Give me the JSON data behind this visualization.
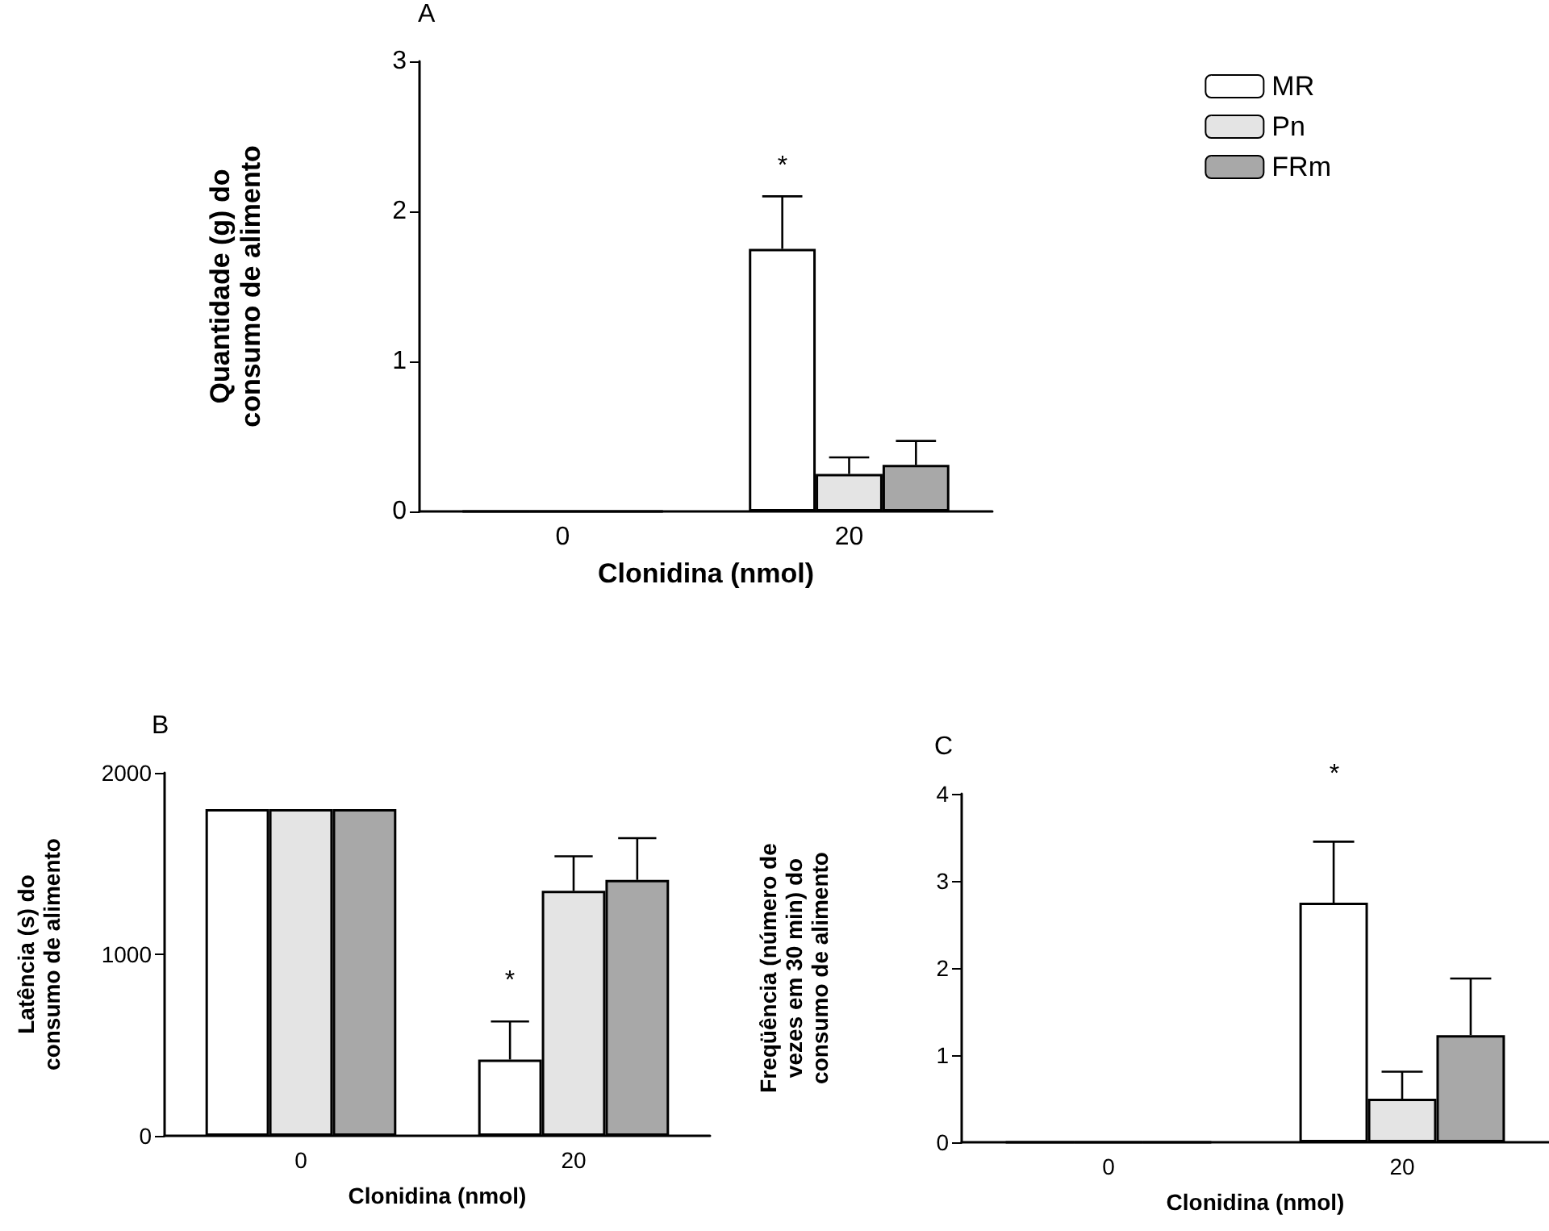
{
  "chart_data": [
    {
      "type": "bar",
      "title": "A",
      "xlabel": "Clonidina (nmol)",
      "ylabel": "Quantidade (g) do\nconsumo de alimento",
      "categories": [
        "0",
        "20"
      ],
      "series": [
        {
          "name": "MR",
          "color": "#ffffff",
          "values": [
            0,
            1.75
          ],
          "errors": [
            null,
            0.35
          ]
        },
        {
          "name": "Pn",
          "color": "#e4e4e4",
          "values": [
            0,
            0.25
          ],
          "errors": [
            null,
            0.11
          ]
        },
        {
          "name": "FRm",
          "color": "#a8a8a8",
          "values": [
            0,
            0.31
          ],
          "errors": [
            null,
            0.16
          ]
        }
      ],
      "ylim": [
        0,
        3
      ],
      "yticks": [
        0,
        1,
        2,
        3
      ],
      "grid": false,
      "legend": "top right",
      "annotations": [
        "*"
      ]
    },
    {
      "type": "bar",
      "title": "B",
      "xlabel": "Clonidina (nmol)",
      "ylabel": "Latência (s) do\nconsumo de alimento",
      "categories": [
        "0",
        "20"
      ],
      "series": [
        {
          "color": "#ffffff",
          "values": [
            1800,
            420
          ],
          "errors": [
            null,
            210
          ]
        },
        {
          "color": "#e4e4e4",
          "values": [
            1800,
            1350
          ],
          "errors": [
            null,
            190
          ]
        },
        {
          "color": "#a8a8a8",
          "values": [
            1800,
            1410
          ],
          "errors": [
            null,
            230
          ]
        }
      ],
      "ylim": [
        0,
        2000
      ],
      "yticks": [
        0,
        1000,
        2000
      ],
      "grid": false,
      "legend": false,
      "annotations": [
        "*"
      ]
    },
    {
      "type": "bar",
      "title": "C",
      "xlabel": "Clonidina (nmol)",
      "ylabel": "Freqüência (número de\nvezes em 30 min) do\nconsumo de alimento",
      "categories": [
        "0",
        "20"
      ],
      "series": [
        {
          "color": "#ffffff",
          "values": [
            0,
            2.75
          ],
          "errors": [
            null,
            0.7
          ]
        },
        {
          "color": "#e4e4e4",
          "values": [
            0,
            0.5
          ],
          "errors": [
            null,
            0.31
          ]
        },
        {
          "color": "#a8a8a8",
          "values": [
            0,
            1.23
          ],
          "errors": [
            null,
            0.65
          ]
        }
      ],
      "ylim": [
        0,
        4
      ],
      "yticks": [
        0,
        1,
        2,
        3,
        4
      ],
      "grid": false,
      "legend": false,
      "annotations": [
        "*"
      ]
    }
  ]
}
